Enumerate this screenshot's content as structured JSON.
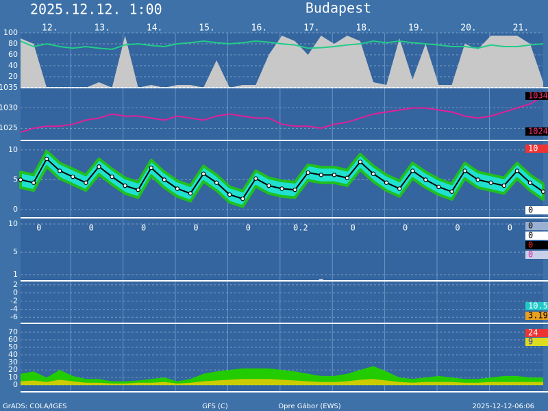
{
  "title": "2025.12.12. 1:00",
  "location": "Budapest",
  "days": [
    "12.",
    "13.",
    "14.",
    "15.",
    "16.",
    "17.",
    "18.",
    "19.",
    "20.",
    "21."
  ],
  "footer": [
    "GrADS: COLA/IGES",
    "GFS (C)",
    "Opre Gábor (EWS)",
    "2025-12-12-06:06"
  ],
  "chart_data": [
    {
      "type": "line",
      "ylim": [
        0,
        100
      ],
      "yticks": [
        100,
        80,
        60,
        40,
        20
      ],
      "series": [
        {
          "style": "area",
          "color": "#c8c8c8",
          "values": [
            90,
            80,
            0,
            0,
            0,
            0,
            10,
            0,
            95,
            0,
            5,
            0,
            5,
            5,
            0,
            50,
            0,
            5,
            5,
            60,
            95,
            85,
            60,
            95,
            80,
            95,
            85,
            10,
            5,
            90,
            15,
            80,
            5,
            5,
            80,
            70,
            95,
            95,
            95,
            80,
            10
          ]
        },
        {
          "style": "line",
          "color": "#22cc88",
          "values": [
            85,
            75,
            80,
            75,
            72,
            75,
            72,
            70,
            78,
            80,
            77,
            75,
            80,
            82,
            85,
            82,
            80,
            82,
            85,
            83,
            80,
            78,
            72,
            73,
            75,
            78,
            80,
            85,
            82,
            85,
            82,
            80,
            78,
            75,
            75,
            72,
            78,
            75,
            75,
            78,
            80
          ]
        }
      ]
    },
    {
      "type": "line",
      "ylim": [
        1022,
        1035
      ],
      "yticks": [
        1035,
        1030,
        1025
      ],
      "series": [
        {
          "style": "line",
          "color": "#e0209a",
          "values": [
            1024,
            1025,
            1025.5,
            1025.5,
            1026,
            1027,
            1027.5,
            1028.5,
            1028,
            1028,
            1027.5,
            1027,
            1028,
            1027.5,
            1027,
            1028,
            1028.5,
            1028,
            1027.5,
            1027.5,
            1026,
            1025.5,
            1025.5,
            1025,
            1026,
            1026.5,
            1027.5,
            1028.5,
            1029,
            1029.5,
            1030,
            1030,
            1029.5,
            1029,
            1028,
            1027.5,
            1028,
            1029,
            1030,
            1031,
            1033
          ]
        }
      ],
      "side_labels": [
        {
          "value": 1034,
          "bg": "#000000",
          "fg": "#ff3377"
        },
        {
          "value": 1024,
          "bg": "#000000",
          "fg": "#ff3377"
        }
      ]
    },
    {
      "type": "line",
      "ylim": [
        -1.4,
        11.6
      ],
      "yticks": [
        10,
        5,
        0
      ],
      "series": [
        {
          "style": "band",
          "color": "#20e0d0",
          "edge": "#20c020",
          "high": [
            6.3,
            5.8,
            9.8,
            7.8,
            6.8,
            5.8,
            8.5,
            6.8,
            5.3,
            4.6,
            8.3,
            6.3,
            4.8,
            4,
            7.3,
            5.8,
            3.8,
            3.1,
            6.5,
            5.3,
            4.8,
            4.6,
            7.5,
            7.1,
            7.1,
            6.6,
            9.3,
            7.3,
            5.8,
            4.8,
            7.8,
            6.3,
            5.1,
            4.3,
            7.8,
            6.3,
            5.8,
            5.3,
            7.8,
            5.8,
            4.3
          ],
          "low": [
            3.7,
            3.2,
            7.2,
            5.2,
            4.2,
            3.2,
            5.9,
            4.2,
            2.7,
            2,
            5.7,
            3.7,
            2.2,
            1.4,
            4.7,
            3.2,
            1.2,
            0.5,
            3.9,
            2.7,
            2.2,
            2,
            4.9,
            4.5,
            4.5,
            4,
            6.7,
            4.7,
            3.2,
            2.2,
            5.2,
            3.7,
            2.5,
            1.7,
            5.2,
            3.7,
            3.2,
            2.7,
            5.2,
            3.2,
            1.7
          ]
        },
        {
          "style": "dots",
          "color": "#000000",
          "values": [
            5,
            4.5,
            8.5,
            6.5,
            5.5,
            4.5,
            7.2,
            5.5,
            4,
            3.3,
            7,
            5,
            3.5,
            2.7,
            6,
            4.5,
            2.5,
            1.8,
            5.2,
            4,
            3.5,
            3.3,
            6.2,
            5.8,
            5.8,
            5.3,
            8,
            6,
            4.5,
            3.5,
            6.5,
            5,
            3.8,
            3,
            6.5,
            5,
            4.5,
            4,
            6.5,
            4.5,
            3
          ]
        }
      ],
      "side_labels": [
        {
          "value": 10,
          "bg": "#ee3333",
          "fg": "#ffffff"
        },
        {
          "value": 0,
          "bg": "#ffffff",
          "fg": "#000000"
        }
      ]
    },
    {
      "type": "bar",
      "ylim": [
        -0.1,
        11.1
      ],
      "yticks": [
        10,
        5,
        1
      ],
      "series": [
        {
          "style": "bar",
          "color": "#e8e8e8",
          "values": [
            0,
            0,
            0,
            0,
            0,
            0,
            0,
            0,
            0,
            0,
            0,
            0,
            0,
            0,
            0,
            0,
            0,
            0,
            0,
            0,
            0,
            0,
            0,
            0.2,
            0,
            0,
            0,
            0,
            0,
            0,
            0,
            0,
            0,
            0,
            0,
            0,
            0,
            0,
            0,
            0,
            0
          ]
        }
      ],
      "daily_totals": [
        0,
        0,
        0,
        0,
        0,
        0.2,
        0,
        0,
        0,
        0
      ],
      "side_labels": [
        {
          "value": 0,
          "bg": "#9ab0d0",
          "fg": "#000000"
        },
        {
          "value": 0,
          "bg": "#ffffff",
          "fg": "#000000"
        },
        {
          "value": 0,
          "bg": "#000000",
          "fg": "#ff2222"
        },
        {
          "value": 0,
          "bg": "#c8d0e8",
          "fg": "#e020a0"
        }
      ]
    },
    {
      "type": "line",
      "ylim": [
        -7.5,
        3
      ],
      "yticks": [
        2,
        0,
        -2,
        -4,
        -6
      ],
      "series": [],
      "side_labels": [
        {
          "value": 10.5,
          "bg": "#20c8c8",
          "fg": "#ffffff"
        },
        {
          "value": 3.19,
          "bg": "#e8a020",
          "fg": "#000000"
        }
      ]
    },
    {
      "type": "line",
      "ylim": [
        -9,
        81.8
      ],
      "yticks": [
        70,
        60,
        50,
        40,
        30,
        20,
        10,
        0
      ],
      "series": [
        {
          "style": "area",
          "color": "#22cc00",
          "values": [
            15,
            18,
            10,
            20,
            12,
            8,
            8,
            5,
            5,
            6,
            8,
            10,
            5,
            8,
            15,
            18,
            20,
            22,
            22,
            22,
            20,
            18,
            15,
            12,
            12,
            15,
            20,
            25,
            18,
            10,
            8,
            10,
            12,
            10,
            8,
            8,
            10,
            12,
            12,
            10,
            10
          ]
        },
        {
          "style": "area",
          "color": "#cccc00",
          "values": [
            5,
            6,
            4,
            7,
            5,
            3,
            3,
            2,
            2,
            3,
            3,
            4,
            2,
            3,
            5,
            6,
            7,
            8,
            8,
            8,
            7,
            6,
            5,
            4,
            4,
            5,
            7,
            8,
            6,
            4,
            3,
            4,
            4,
            4,
            3,
            3,
            4,
            4,
            4,
            4,
            4
          ]
        }
      ],
      "side_labels": [
        {
          "value": 24,
          "bg": "#ee3333",
          "fg": "#ffffff"
        },
        {
          "value": 9,
          "bg": "#dddd20",
          "fg": "#3030c0"
        }
      ]
    }
  ]
}
